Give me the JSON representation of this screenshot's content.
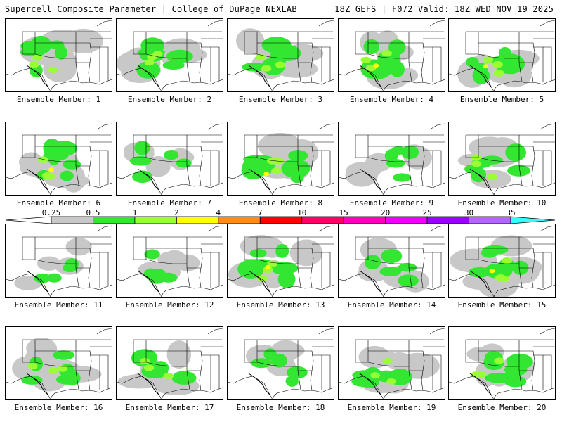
{
  "header": {
    "title": "Supercell Composite Parameter | College of DuPage NEXLAB",
    "run_info": "18Z GEFS | F072 Valid: 18Z WED NOV 19 2025"
  },
  "member_label_prefix": "Ensemble Member:",
  "members": [
    {
      "id": 1,
      "label": "Ensemble Member: 1",
      "intensity": 0.8
    },
    {
      "id": 2,
      "label": "Ensemble Member: 2",
      "intensity": 0.75
    },
    {
      "id": 3,
      "label": "Ensemble Member: 3",
      "intensity": 0.8
    },
    {
      "id": 4,
      "label": "Ensemble Member: 4",
      "intensity": 0.85
    },
    {
      "id": 5,
      "label": "Ensemble Member: 5",
      "intensity": 0.9
    },
    {
      "id": 6,
      "label": "Ensemble Member: 6",
      "intensity": 0.9
    },
    {
      "id": 7,
      "label": "Ensemble Member: 7",
      "intensity": 0.5
    },
    {
      "id": 8,
      "label": "Ensemble Member: 8",
      "intensity": 0.9
    },
    {
      "id": 9,
      "label": "Ensemble Member: 9",
      "intensity": 0.5
    },
    {
      "id": 10,
      "label": "Ensemble Member: 10",
      "intensity": 0.8
    },
    {
      "id": 11,
      "label": "Ensemble Member: 11",
      "intensity": 0.25
    },
    {
      "id": 12,
      "label": "Ensemble Member: 12",
      "intensity": 0.4
    },
    {
      "id": 13,
      "label": "Ensemble Member: 13",
      "intensity": 0.85
    },
    {
      "id": 14,
      "label": "Ensemble Member: 14",
      "intensity": 0.5
    },
    {
      "id": 15,
      "label": "Ensemble Member: 15",
      "intensity": 0.9
    },
    {
      "id": 16,
      "label": "Ensemble Member: 16",
      "intensity": 0.8
    },
    {
      "id": 17,
      "label": "Ensemble Member: 17",
      "intensity": 0.8
    },
    {
      "id": 18,
      "label": "Ensemble Member: 18",
      "intensity": 0.5
    },
    {
      "id": 19,
      "label": "Ensemble Member: 19",
      "intensity": 0.7
    },
    {
      "id": 20,
      "label": "Ensemble Member: 20",
      "intensity": 0.8
    }
  ],
  "colorbar": {
    "breaks": [
      "0.25",
      "0.5",
      "1",
      "2",
      "4",
      "7",
      "10",
      "15",
      "20",
      "25",
      "30",
      "35"
    ],
    "colors": [
      "#c8c8c8",
      "#32e632",
      "#99ff33",
      "#ffff00",
      "#ff8c19",
      "#ff0000",
      "#ff0066",
      "#ff00bb",
      "#ee00ff",
      "#9900ff",
      "#b266ff",
      "#33ffff"
    ]
  },
  "palette": {
    "scp_gray": "#c8c8c8",
    "scp_green": "#32e632",
    "scp_lime": "#99ff33",
    "scp_yellow": "#ffff00",
    "boundary": "#000000"
  }
}
